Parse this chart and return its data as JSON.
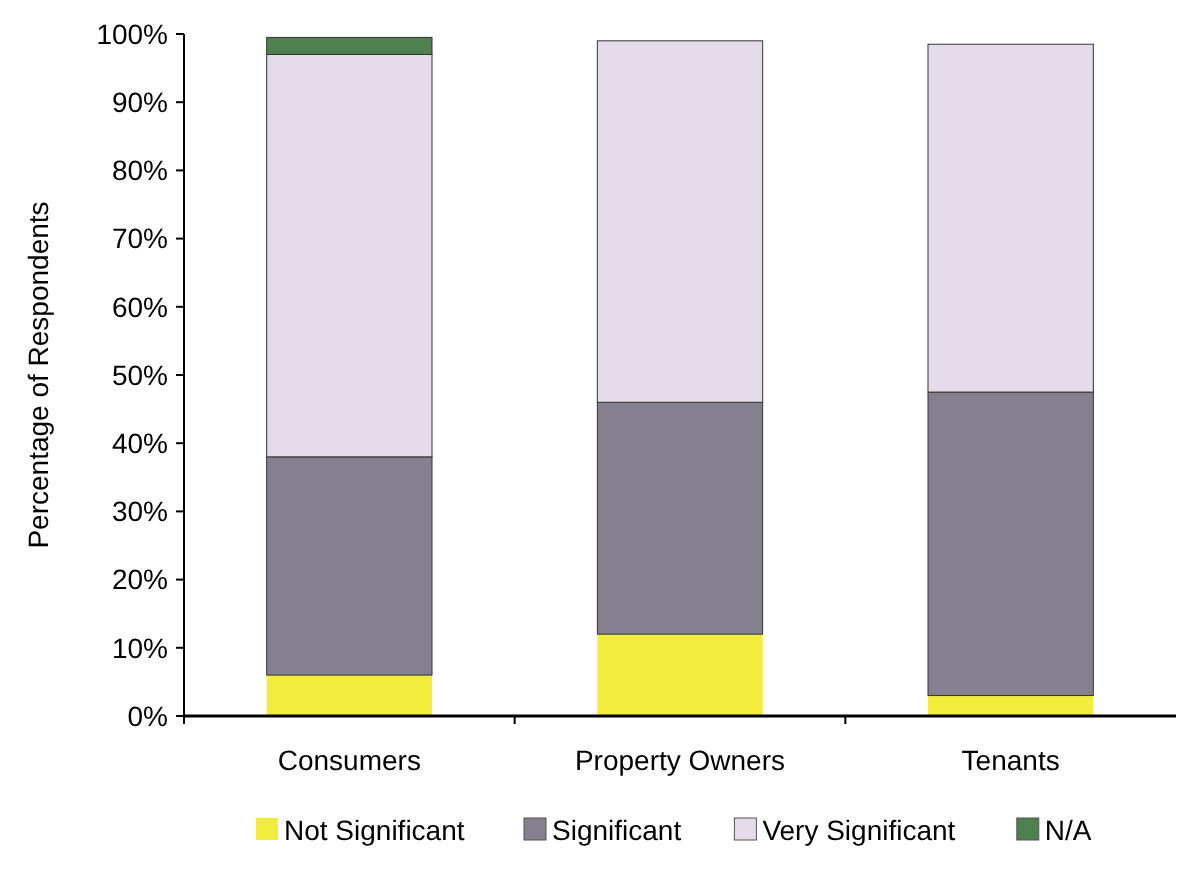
{
  "chart_data": {
    "type": "bar",
    "stacked": true,
    "ylabel": "Percentage of Respondents",
    "categories": [
      "Consumers",
      "Property Owners",
      "Tenants"
    ],
    "series": [
      {
        "name": "Not Significant",
        "color": "#f2ec3c",
        "values": [
          6,
          12,
          3
        ]
      },
      {
        "name": "Significant",
        "color": "#85808f",
        "values": [
          32,
          34,
          44.5
        ]
      },
      {
        "name": "Very Significant",
        "color": "#e4dcea",
        "values": [
          59,
          53,
          51
        ]
      },
      {
        "name": "N/A",
        "color": "#4e8050",
        "values": [
          2.5,
          0,
          0
        ]
      }
    ],
    "ylim": [
      0,
      100
    ],
    "yticks": [
      {
        "value": 0,
        "label": "0%"
      },
      {
        "value": 10,
        "label": "10%"
      },
      {
        "value": 20,
        "label": "20%"
      },
      {
        "value": 30,
        "label": "30%"
      },
      {
        "value": 40,
        "label": "40%"
      },
      {
        "value": 50,
        "label": "50%"
      },
      {
        "value": 60,
        "label": "60%"
      },
      {
        "value": 70,
        "label": "70%"
      },
      {
        "value": 80,
        "label": "80%"
      },
      {
        "value": 90,
        "label": "90%"
      },
      {
        "value": 100,
        "label": "100%"
      }
    ],
    "grid": false,
    "legend": "bottom"
  }
}
